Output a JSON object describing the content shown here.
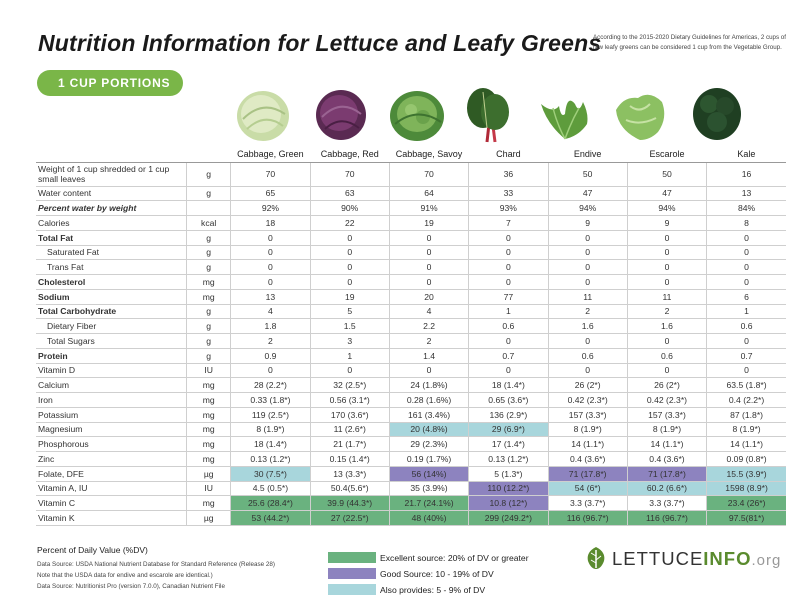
{
  "header": {
    "title": "Nutrition Information for Lettuce and Leafy Greens",
    "note": "According to the 2015-2020 Dietary Guidelines for Americas, 2 cups of raw leafy greens can be considered 1 cup from the Vegetable Group.",
    "pill": "1 CUP PORTIONS"
  },
  "columns": [
    "Cabbage, Green",
    "Cabbage, Red",
    "Cabbage, Savoy",
    "Chard",
    "Endive",
    "Escarole",
    "Kale"
  ],
  "rows": [
    {
      "label": "Weight of 1 cup shredded or 1 cup small leaves",
      "unit": "g",
      "values": [
        "70",
        "70",
        "70",
        "36",
        "50",
        "50",
        "16"
      ],
      "style": [
        "tall"
      ]
    },
    {
      "label": "Water content",
      "unit": "g",
      "values": [
        "65",
        "63",
        "64",
        "33",
        "47",
        "47",
        "13"
      ]
    },
    {
      "label": "Percent water by weight",
      "unit": "",
      "values": [
        "92%",
        "90%",
        "91%",
        "93%",
        "94%",
        "94%",
        "84%"
      ],
      "style": [
        "italic"
      ]
    },
    {
      "label": "Calories",
      "unit": "kcal",
      "values": [
        "18",
        "22",
        "19",
        "7",
        "9",
        "9",
        "8"
      ],
      "style": [
        "thick"
      ]
    },
    {
      "label": "Total Fat",
      "unit": "g",
      "values": [
        "0",
        "0",
        "0",
        "0",
        "0",
        "0",
        "0"
      ],
      "style": [
        "bold"
      ]
    },
    {
      "label": "Saturated Fat",
      "unit": "g",
      "values": [
        "0",
        "0",
        "0",
        "0",
        "0",
        "0",
        "0"
      ],
      "style": [
        "indent"
      ]
    },
    {
      "label": "Trans Fat",
      "unit": "g",
      "values": [
        "0",
        "0",
        "0",
        "0",
        "0",
        "0",
        "0"
      ],
      "style": [
        "indent"
      ]
    },
    {
      "label": "Cholesterol",
      "unit": "mg",
      "values": [
        "0",
        "0",
        "0",
        "0",
        "0",
        "0",
        "0"
      ],
      "style": [
        "bold"
      ]
    },
    {
      "label": "Sodium",
      "unit": "mg",
      "values": [
        "13",
        "19",
        "20",
        "77",
        "11",
        "11",
        "6"
      ],
      "style": [
        "bold"
      ]
    },
    {
      "label": "Total Carbohydrate",
      "unit": "g",
      "values": [
        "4",
        "5",
        "4",
        "1",
        "2",
        "2",
        "1"
      ],
      "style": [
        "bold"
      ]
    },
    {
      "label": "Dietary Fiber",
      "unit": "g",
      "values": [
        "1.8",
        "1.5",
        "2.2",
        "0.6",
        "1.6",
        "1.6",
        "0.6"
      ],
      "style": [
        "indent"
      ]
    },
    {
      "label": "Total Sugars",
      "unit": "g",
      "values": [
        "2",
        "3",
        "2",
        "0",
        "0",
        "0",
        "0"
      ],
      "style": [
        "indent"
      ]
    },
    {
      "label": "Protein",
      "unit": "g",
      "values": [
        "0.9",
        "1",
        "1.4",
        "0.7",
        "0.6",
        "0.6",
        "0.7"
      ],
      "style": [
        "bold"
      ]
    },
    {
      "label": "Vitamin D",
      "unit": "IU",
      "values": [
        "0",
        "0",
        "0",
        "0",
        "0",
        "0",
        "0"
      ],
      "style": [
        "thick"
      ]
    },
    {
      "label": "Calcium",
      "unit": "mg",
      "values": [
        "28 (2.2*)",
        "32 (2.5*)",
        "24 (1.8%)",
        "18 (1.4*)",
        "26 (2*)",
        "26 (2*)",
        "63.5 (1.8*)"
      ]
    },
    {
      "label": "Iron",
      "unit": "mg",
      "values": [
        "0.33 (1.8*)",
        "0.56 (3.1*)",
        "0.28 (1.6%)",
        "0.65 (3.6*)",
        "0.42 (2.3*)",
        "0.42 (2.3*)",
        "0.4 (2.2*)"
      ]
    },
    {
      "label": "Potassium",
      "unit": "mg",
      "values": [
        "119 (2.5*)",
        "170 (3.6*)",
        "161 (3.4%)",
        "136 (2.9*)",
        "157 (3.3*)",
        "157 (3.3*)",
        "87 (1.8*)"
      ]
    },
    {
      "label": "Magnesium",
      "unit": "mg",
      "values": [
        "8 (1.9*)",
        "11 (2.6*)",
        "20 (4.8%)",
        "29 (6.9*)",
        "8 (1.9*)",
        "8 (1.9*)",
        "8 (1.9*)"
      ],
      "highlight": [
        "",
        "",
        "al",
        "al",
        "",
        "",
        ""
      ]
    },
    {
      "label": "Phosphorous",
      "unit": "mg",
      "values": [
        "18 (1.4*)",
        "21 (1.7*)",
        "29 (2.3%)",
        "17 (1.4*)",
        "14 (1.1*)",
        "14 (1.1*)",
        "14 (1.1*)"
      ]
    },
    {
      "label": "Zinc",
      "unit": "mg",
      "values": [
        "0.13 (1.2*)",
        "0.15 (1.4*)",
        "0.19 (1.7%)",
        "0.13 (1.2*)",
        "0.4 (3.6*)",
        "0.4 (3.6*)",
        "0.09 (0.8*)"
      ]
    },
    {
      "label": "Folate, DFE",
      "unit": "µg",
      "values": [
        "30 (7.5*)",
        "13 (3.3*)",
        "56 (14%)",
        "5 (1.3*)",
        "71 (17.8*)",
        "71 (17.8*)",
        "15.5 (3.9*)"
      ],
      "highlight": [
        "al",
        "",
        "gd",
        "",
        "gd",
        "gd",
        "al"
      ]
    },
    {
      "label": "Vitamin A, IU",
      "unit": "IU",
      "values": [
        "4.5 (0.5*)",
        "50.4(5.6*)",
        "35 (3.9%)",
        "110 (12.2*)",
        "54 (6*)",
        "60.2 (6.6*)",
        "1598 (8.9*)"
      ],
      "highlight": [
        "",
        "",
        "",
        "gd",
        "al",
        "al",
        "al"
      ]
    },
    {
      "label": "Vitamin C",
      "unit": "mg",
      "values": [
        "25.6 (28.4*)",
        "39.9 (44.3*)",
        "21.7 (24.1%)",
        "10.8 (12*)",
        "3.3 (3.7*)",
        "3.3 (3.7*)",
        "23.4 (26*)"
      ],
      "highlight": [
        "ex",
        "ex",
        "ex",
        "gd",
        "",
        "",
        "ex"
      ]
    },
    {
      "label": "Vitamin K",
      "unit": "µg",
      "values": [
        "53 (44.2*)",
        "27 (22.5*)",
        "48 (40%)",
        "299 (249.2*)",
        "116 (96.7*)",
        "116 (96.7*)",
        "97.5(81*)"
      ],
      "highlight": [
        "ex",
        "ex",
        "ex",
        "ex",
        "ex",
        "ex",
        "ex"
      ]
    }
  ],
  "footer": {
    "dv_title": "Percent of Daily Value (%DV)",
    "sources": [
      "Data Source: USDA National Nutrient Database for Standard Reference (Release 28)",
      "Note that the USDA data for endive and escarole are identical.)",
      "Data Source: Nutritionist Pro (version 7.0.0), Canadian Nutrient File"
    ],
    "legend": [
      {
        "text": "Excellent source: 20% of DV or greater",
        "color": "#6ab27f"
      },
      {
        "text": "Good Source: 10 - 19% of DV",
        "color": "#8d83bf"
      },
      {
        "text": "Also provides: 5 - 9% of DV",
        "color": "#a8d6dc"
      }
    ]
  },
  "logo": {
    "part1": "LETTUCE",
    "part2": "INFO",
    "part3": ".org"
  },
  "icons": [
    "cabbage-green-image",
    "cabbage-red-image",
    "cabbage-savoy-image",
    "chard-image",
    "endive-image",
    "escarole-image",
    "kale-image",
    "lettuce-leaf-logo-icon"
  ]
}
